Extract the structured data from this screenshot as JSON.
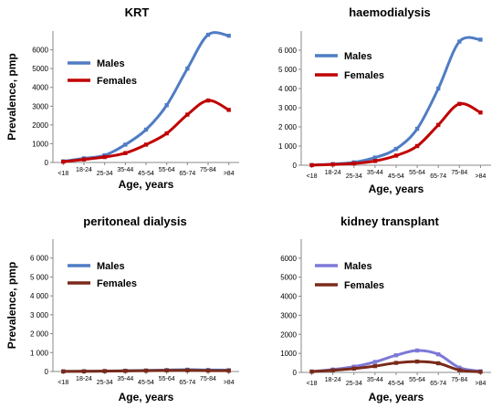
{
  "chart_data": [
    {
      "type": "line",
      "title": "KRT",
      "xlabel": "Age, years",
      "ylabel": "Prevalence, pmp",
      "categories": [
        "<18",
        "18-24",
        "25-34",
        "35-44",
        "45-54",
        "55-64",
        "65-74",
        "75-84",
        ">84"
      ],
      "yticks": [
        "0",
        "1000",
        "2000",
        "3000",
        "4000",
        "5000",
        "6000"
      ],
      "ylim": [
        0,
        7000
      ],
      "legend": "top-left",
      "series": [
        {
          "name": "Males",
          "color": "#4f7cc4",
          "values": [
            60,
            220,
            380,
            950,
            1750,
            3050,
            5000,
            6800,
            6750
          ]
        },
        {
          "name": "Females",
          "color": "#c00000",
          "values": [
            40,
            160,
            290,
            500,
            950,
            1550,
            2550,
            3300,
            2800
          ]
        }
      ]
    },
    {
      "type": "line",
      "title": "haemodialysis",
      "xlabel": "Age, years",
      "ylabel": "",
      "categories": [
        "<18",
        "18-24",
        "25-34",
        "35-44",
        "45-54",
        "55-64",
        "65-74",
        "75-84",
        ">84"
      ],
      "yticks": [
        "0",
        "1 000",
        "2 000",
        "3 000",
        "4 000",
        "5 000",
        "6 000"
      ],
      "ylim": [
        0,
        7000
      ],
      "legend": "top-left",
      "series": [
        {
          "name": "Males",
          "color": "#4f7cc4",
          "values": [
            5,
            60,
            150,
            400,
            850,
            1900,
            4000,
            6450,
            6550
          ]
        },
        {
          "name": "Females",
          "color": "#c00000",
          "values": [
            5,
            40,
            90,
            220,
            500,
            1000,
            2100,
            3200,
            2750
          ]
        }
      ]
    },
    {
      "type": "line",
      "title": "peritoneal dialysis",
      "xlabel": "Age, years",
      "ylabel": "Prevalence, pmp",
      "categories": [
        "<18",
        "18-24",
        "25-34",
        "35-44",
        "45-54",
        "55-64",
        "65-74",
        "75-84",
        ">84"
      ],
      "yticks": [
        "0",
        "1 000",
        "2 000",
        "3 000",
        "4 000",
        "5 000",
        "6 000"
      ],
      "ylim": [
        0,
        7000
      ],
      "legend": "top-left",
      "series": [
        {
          "name": "Males",
          "color": "#4f7cc4",
          "values": [
            5,
            15,
            25,
            40,
            55,
            75,
            95,
            80,
            70
          ]
        },
        {
          "name": "Females",
          "color": "#7a2a1a",
          "values": [
            5,
            10,
            20,
            30,
            40,
            55,
            60,
            45,
            40
          ]
        }
      ]
    },
    {
      "type": "line",
      "title": "kidney transplant",
      "xlabel": "Age, years",
      "ylabel": "",
      "categories": [
        "<18",
        "18-24",
        "25-34",
        "35-44",
        "45-54",
        "55-64",
        "65-74",
        "75-84",
        ">84"
      ],
      "yticks": [
        "0",
        "1000",
        "2000",
        "3000",
        "4000",
        "5000",
        "6000"
      ],
      "ylim": [
        0,
        7000
      ],
      "legend": "top-left",
      "series": [
        {
          "name": "Males",
          "color": "#7d79d8",
          "values": [
            50,
            150,
            300,
            550,
            900,
            1150,
            950,
            250,
            60
          ]
        },
        {
          "name": "Females",
          "color": "#7a2a1a",
          "values": [
            40,
            110,
            200,
            330,
            500,
            570,
            480,
            120,
            30
          ]
        }
      ]
    }
  ]
}
